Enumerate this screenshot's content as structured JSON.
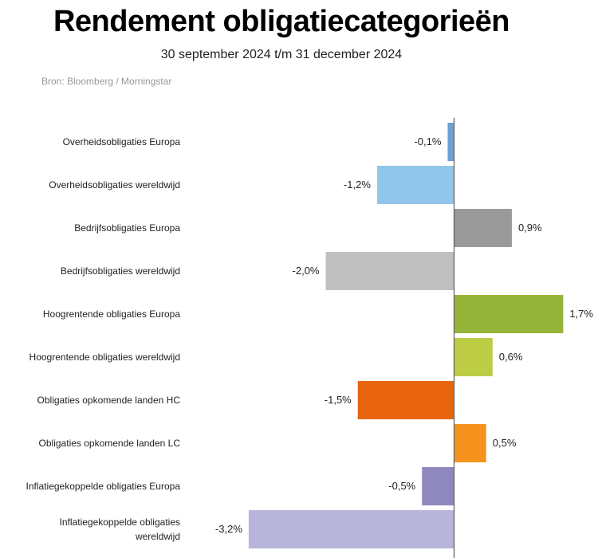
{
  "chart_data": {
    "type": "bar",
    "orientation": "horizontal",
    "title": "Rendement obligatiecategorieën",
    "subtitle": "30 september 2024 t/m 31 december 2024",
    "source": "Bron: Bloomberg / Morningstar",
    "categories": [
      [
        "Overheidsobligaties Europa"
      ],
      [
        "Overheidsobligaties wereldwijd"
      ],
      [
        "Bedrijfsobligaties Europa"
      ],
      [
        "Bedrijfsobligaties wereldwijd"
      ],
      [
        "Hoogrentende obligaties Europa"
      ],
      [
        "Hoogrentende obligaties wereldwijd"
      ],
      [
        "Obligaties opkomende landen HC"
      ],
      [
        "Obligaties opkomende landen LC"
      ],
      [
        "Inflatiegekoppelde obligaties Europa"
      ],
      [
        "Inflatiegekoppelde obligaties",
        "wereldwijd"
      ]
    ],
    "values": [
      -0.1,
      -1.2,
      0.9,
      -2.0,
      1.7,
      0.6,
      -1.5,
      0.5,
      -0.5,
      -3.2
    ],
    "labels": [
      "-0,1%",
      "-1,2%",
      "0,9%",
      "-2,0%",
      "1,7%",
      "0,6%",
      "-1,5%",
      "0,5%",
      "-0,5%",
      "-3,2%"
    ],
    "colors": [
      "#6f9fd4",
      "#92c5ea",
      "#9a9a9a",
      "#c0c0c0",
      "#97b43a",
      "#bccd45",
      "#e8640f",
      "#f5921e",
      "#8e88bf",
      "#b8b5da"
    ],
    "xlabel": "",
    "ylabel": "",
    "xlim": [
      -3.2,
      2.2
    ],
    "grid": false
  }
}
